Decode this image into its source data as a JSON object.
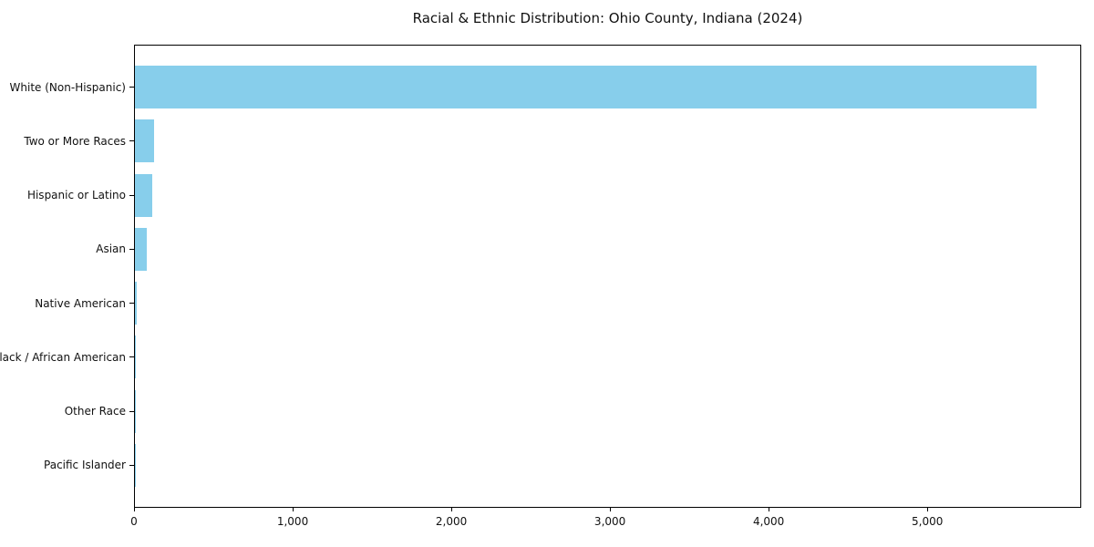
{
  "chart_data": {
    "type": "bar",
    "orientation": "horizontal",
    "title": "Racial & Ethnic Distribution: Ohio County, Indiana (2024)",
    "categories": [
      "White (Non-Hispanic)",
      "Two or More Races",
      "Hispanic or Latino",
      "Asian",
      "Native American",
      "Black / African American",
      "Other Race",
      "Pacific Islander"
    ],
    "values": [
      5685,
      122,
      110,
      72,
      12,
      6,
      3,
      1
    ],
    "xlabel": "",
    "ylabel": "",
    "xlim": [
      0,
      5970
    ],
    "x_ticks": [
      {
        "value": 0,
        "label": "0"
      },
      {
        "value": 1000,
        "label": "1,000"
      },
      {
        "value": 2000,
        "label": "2,000"
      },
      {
        "value": 3000,
        "label": "3,000"
      },
      {
        "value": 4000,
        "label": "4,000"
      },
      {
        "value": 5000,
        "label": "5,000"
      }
    ],
    "bar_color": "#87CEEB",
    "spine_color": "#000000",
    "grid": false,
    "legend": null
  }
}
